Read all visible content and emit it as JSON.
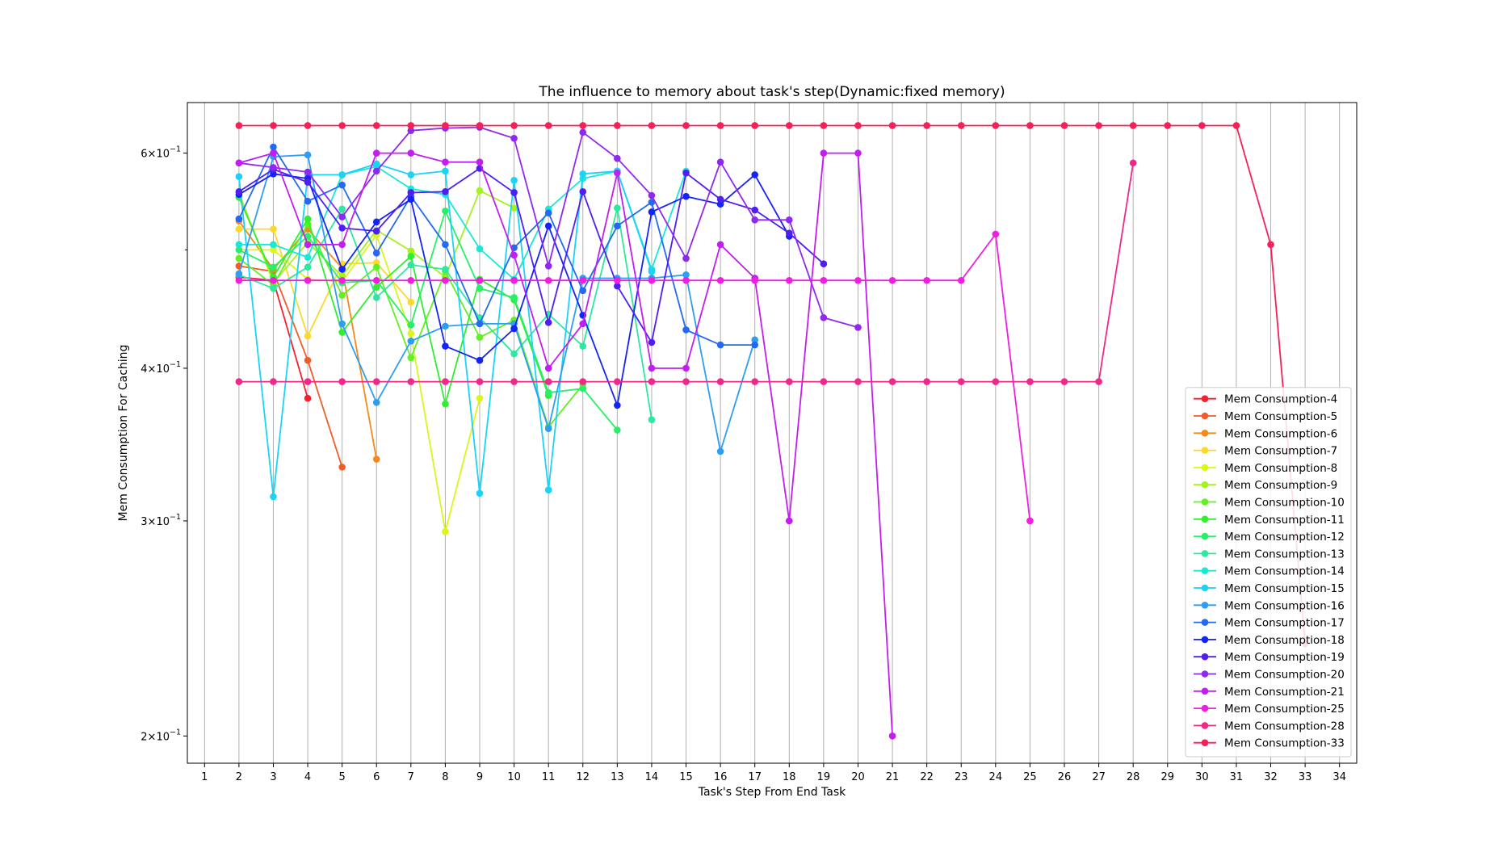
{
  "chart_data": {
    "type": "line",
    "title": "The influence to memory about task's step(Dynamic:fixed memory)",
    "xlabel": "Task's Step From End Task",
    "ylabel": "Mem Consumption For Caching",
    "x_ticks": [
      "1",
      "2",
      "3",
      "4",
      "5",
      "6",
      "7",
      "8",
      "9",
      "10",
      "11",
      "12",
      "13",
      "14",
      "15",
      "16",
      "17",
      "18",
      "19",
      "20",
      "21",
      "22",
      "23",
      "24",
      "25",
      "26",
      "27",
      "28",
      "29",
      "30",
      "31",
      "32",
      "33",
      "34"
    ],
    "xlim": [
      0.5,
      34.5
    ],
    "yscale": "log",
    "ylim": [
      0.19,
      0.66
    ],
    "y_ticks": [
      {
        "value": 0.2,
        "base": "2",
        "mid": "×10",
        "exp": "−1"
      },
      {
        "value": 0.3,
        "base": "3",
        "mid": "×10",
        "exp": "−1"
      },
      {
        "value": 0.4,
        "base": "4",
        "mid": "×10",
        "exp": "−1"
      },
      {
        "value": 0.6,
        "base": "6",
        "mid": "×10",
        "exp": "−1"
      }
    ],
    "y_minor_ticks": [
      0.5
    ],
    "grid": "x",
    "legend_position": "lower-right",
    "series": [
      {
        "name": "Mem Consumption-4",
        "color": "#f5202e",
        "x": [
          2,
          3,
          4
        ],
        "y": [
          0.475,
          0.472,
          0.378
        ]
      },
      {
        "name": "Mem Consumption-5",
        "color": "#f25c28",
        "x": [
          2,
          3,
          4,
          5
        ],
        "y": [
          0.485,
          0.48,
          0.406,
          0.332
        ]
      },
      {
        "name": "Mem Consumption-6",
        "color": "#f58a1a",
        "x": [
          2,
          3,
          4,
          5,
          6
        ],
        "y": [
          0.528,
          0.482,
          0.52,
          0.483,
          0.337
        ]
      },
      {
        "name": "Mem Consumption-7",
        "color": "#fbd92b",
        "x": [
          2,
          3,
          4,
          5,
          6,
          7
        ],
        "y": [
          0.52,
          0.52,
          0.425,
          0.487,
          0.488,
          0.453
        ]
      },
      {
        "name": "Mem Consumption-8",
        "color": "#dcf51a",
        "x": [
          2,
          3,
          4,
          5,
          6,
          7,
          8,
          9
        ],
        "y": [
          0.5,
          0.5,
          0.473,
          0.471,
          0.514,
          0.427,
          0.294,
          0.378
        ]
      },
      {
        "name": "Mem Consumption-9",
        "color": "#a6f21f",
        "x": [
          2,
          3,
          4,
          5,
          6,
          7,
          8,
          9,
          10
        ],
        "y": [
          0.557,
          0.47,
          0.507,
          0.476,
          0.519,
          0.499,
          0.475,
          0.559,
          0.541
        ]
      },
      {
        "name": "Mem Consumption-10",
        "color": "#63f023",
        "x": [
          2,
          3,
          4,
          5,
          6,
          7,
          8,
          9,
          10,
          11,
          12
        ],
        "y": [
          0.492,
          0.468,
          0.525,
          0.459,
          0.484,
          0.408,
          0.48,
          0.424,
          0.438,
          0.358,
          0.388
        ]
      },
      {
        "name": "Mem Consumption-11",
        "color": "#2ef02e",
        "x": [
          2,
          3,
          4,
          5,
          6,
          7,
          8,
          9,
          10,
          11
        ],
        "y": [
          0.552,
          0.475,
          0.53,
          0.428,
          0.466,
          0.494,
          0.374,
          0.473,
          0.455,
          0.38
        ]
      },
      {
        "name": "Mem Consumption-12",
        "color": "#25f067",
        "x": [
          2,
          3,
          4,
          5,
          6,
          7,
          8,
          9,
          10,
          11,
          12,
          13
        ],
        "y": [
          0.5,
          0.484,
          0.513,
          0.47,
          0.472,
          0.434,
          0.538,
          0.465,
          0.457,
          0.382,
          0.385,
          0.356
        ]
      },
      {
        "name": "Mem Consumption-13",
        "color": "#2de8a0",
        "x": [
          2,
          3,
          4,
          5,
          6,
          7,
          8,
          9,
          10,
          11,
          12,
          13,
          14
        ],
        "y": [
          0.477,
          0.465,
          0.484,
          0.54,
          0.457,
          0.486,
          0.482,
          0.44,
          0.411,
          0.443,
          0.417,
          0.541,
          0.363
        ]
      },
      {
        "name": "Mem Consumption-14",
        "color": "#19e8d6",
        "x": [
          2,
          3,
          4,
          5,
          6,
          7,
          8,
          9,
          10,
          11,
          12,
          13,
          14,
          15
        ],
        "y": [
          0.505,
          0.505,
          0.493,
          0.576,
          0.585,
          0.561,
          0.555,
          0.501,
          0.473,
          0.54,
          0.572,
          0.58,
          0.482,
          0.58
        ]
      },
      {
        "name": "Mem Consumption-15",
        "color": "#1ad3f5",
        "x": [
          2,
          3,
          4,
          5,
          6,
          7,
          8,
          9,
          10,
          11,
          12,
          13,
          14
        ],
        "y": [
          0.574,
          0.314,
          0.576,
          0.576,
          0.588,
          0.576,
          0.58,
          0.316,
          0.57,
          0.318,
          0.577,
          0.58,
          0.48
        ]
      },
      {
        "name": "Mem Consumption-16",
        "color": "#2e9ef2",
        "x": [
          2,
          3,
          4,
          5,
          6,
          7,
          8,
          9,
          10,
          11,
          12,
          13,
          14,
          15,
          16,
          17
        ],
        "y": [
          0.478,
          0.596,
          0.598,
          0.435,
          0.375,
          0.421,
          0.433,
          0.435,
          0.435,
          0.357,
          0.474,
          0.474,
          0.474,
          0.477,
          0.342,
          0.422
        ]
      },
      {
        "name": "Mem Consumption-17",
        "color": "#2469f2",
        "x": [
          2,
          3,
          4,
          5,
          6,
          7,
          8,
          9,
          10,
          11,
          12,
          13,
          14,
          15,
          16,
          17
        ],
        "y": [
          0.53,
          0.607,
          0.548,
          0.565,
          0.497,
          0.553,
          0.505,
          0.435,
          0.502,
          0.536,
          0.463,
          0.523,
          0.547,
          0.43,
          0.418,
          0.418
        ]
      },
      {
        "name": "Mem Consumption-18",
        "color": "#1523f5",
        "x": [
          2,
          3,
          4,
          5,
          6,
          7,
          8,
          9,
          10,
          11,
          12,
          13,
          14,
          15,
          16,
          17,
          18
        ],
        "y": [
          0.555,
          0.577,
          0.572,
          0.482,
          0.527,
          0.55,
          0.417,
          0.406,
          0.431,
          0.523,
          0.442,
          0.373,
          0.537,
          0.553,
          0.545,
          0.576,
          0.513
        ]
      },
      {
        "name": "Mem Consumption-19",
        "color": "#4f1ef2",
        "x": [
          2,
          3,
          4,
          5,
          6,
          7,
          8,
          9,
          10,
          11,
          12,
          13,
          14,
          15,
          16,
          17,
          18,
          19
        ],
        "y": [
          0.558,
          0.582,
          0.568,
          0.521,
          0.518,
          0.557,
          0.558,
          0.583,
          0.557,
          0.436,
          0.558,
          0.467,
          0.42,
          0.578,
          0.55,
          0.539,
          0.516,
          0.487
        ]
      },
      {
        "name": "Mem Consumption-20",
        "color": "#8f28f0",
        "x": [
          2,
          3,
          4,
          5,
          6,
          7,
          8,
          9,
          10,
          11,
          12,
          13,
          14,
          15,
          16,
          17,
          18,
          19,
          20
        ],
        "y": [
          0.589,
          0.584,
          0.579,
          0.532,
          0.58,
          0.626,
          0.629,
          0.63,
          0.617,
          0.485,
          0.624,
          0.594,
          0.554,
          0.492,
          0.59,
          0.529,
          0.529,
          0.44,
          0.432
        ]
      },
      {
        "name": "Mem Consumption-21",
        "color": "#c21ef0",
        "x": [
          2,
          3,
          4,
          5,
          6,
          7,
          8,
          9,
          10,
          11,
          12,
          13,
          14,
          15,
          16,
          17,
          18,
          19,
          20,
          21
        ],
        "y": [
          0.589,
          0.6,
          0.505,
          0.505,
          0.6,
          0.6,
          0.59,
          0.59,
          0.495,
          0.4,
          0.435,
          0.578,
          0.4,
          0.4,
          0.505,
          0.474,
          0.3,
          0.6,
          0.6,
          0.2
        ]
      },
      {
        "name": "Mem Consumption-25",
        "color": "#f01ee0",
        "x": [
          2,
          3,
          4,
          5,
          6,
          7,
          8,
          9,
          10,
          11,
          12,
          13,
          14,
          15,
          16,
          17,
          18,
          19,
          20,
          21,
          22,
          23,
          24,
          25
        ],
        "y": [
          0.472,
          0.472,
          0.472,
          0.472,
          0.472,
          0.472,
          0.472,
          0.472,
          0.472,
          0.472,
          0.472,
          0.472,
          0.472,
          0.472,
          0.472,
          0.472,
          0.472,
          0.472,
          0.472,
          0.472,
          0.472,
          0.472,
          0.515,
          0.3
        ]
      },
      {
        "name": "Mem Consumption-28",
        "color": "#f0288a",
        "x": [
          2,
          3,
          4,
          5,
          6,
          7,
          8,
          9,
          10,
          11,
          12,
          13,
          14,
          15,
          16,
          17,
          18,
          19,
          20,
          21,
          22,
          23,
          24,
          25,
          26,
          27,
          28
        ],
        "y": [
          0.39,
          0.39,
          0.39,
          0.39,
          0.39,
          0.39,
          0.39,
          0.39,
          0.39,
          0.39,
          0.39,
          0.39,
          0.39,
          0.39,
          0.39,
          0.39,
          0.39,
          0.39,
          0.39,
          0.39,
          0.39,
          0.39,
          0.39,
          0.39,
          0.39,
          0.39,
          0.589
        ]
      },
      {
        "name": "Mem Consumption-33",
        "color": "#f5205a",
        "x": [
          2,
          3,
          4,
          5,
          6,
          7,
          8,
          9,
          10,
          11,
          12,
          13,
          14,
          15,
          16,
          17,
          18,
          19,
          20,
          21,
          22,
          23,
          24,
          25,
          26,
          27,
          28,
          29,
          30,
          31,
          32,
          33
        ],
        "y": [
          0.632,
          0.632,
          0.632,
          0.632,
          0.632,
          0.632,
          0.632,
          0.632,
          0.632,
          0.632,
          0.632,
          0.632,
          0.632,
          0.632,
          0.632,
          0.632,
          0.632,
          0.632,
          0.632,
          0.632,
          0.632,
          0.632,
          0.632,
          0.632,
          0.632,
          0.632,
          0.632,
          0.632,
          0.632,
          0.632,
          0.505,
          0.238
        ]
      }
    ]
  }
}
